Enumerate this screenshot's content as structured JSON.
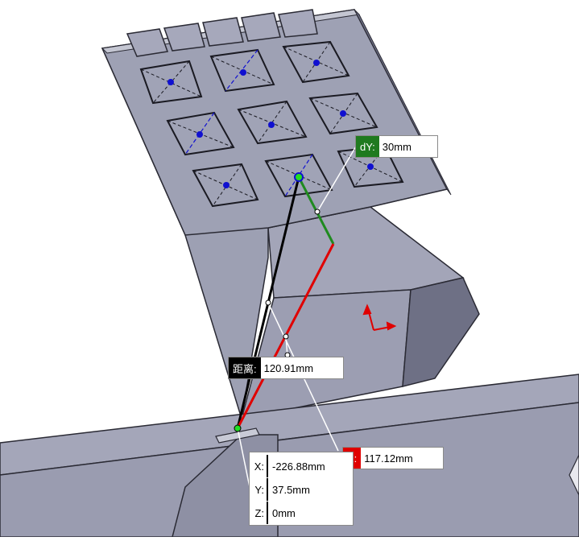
{
  "measurement": {
    "distance": {
      "label": "距离:",
      "value": "120.91mm",
      "color": "#000000"
    },
    "dy": {
      "label": "dY:",
      "value": "30mm",
      "color": "#1f7a1f"
    },
    "dx": {
      "label": "X:",
      "value": "117.12mm",
      "color": "#e00000"
    },
    "point": {
      "x_label": "X:",
      "x_value": "-226.88mm",
      "y_label": "Y:",
      "y_value": "37.5mm",
      "z_label": "Z:",
      "z_value": "0mm"
    }
  },
  "colors": {
    "face_light": "#a9abbd",
    "face_mid": "#8f92a5",
    "face_dark": "#6c6e83",
    "edge": "#2a2a34",
    "axis_red": "#e00000",
    "axis_green": "#1f8a1f",
    "point_blue": "#1010d0"
  }
}
